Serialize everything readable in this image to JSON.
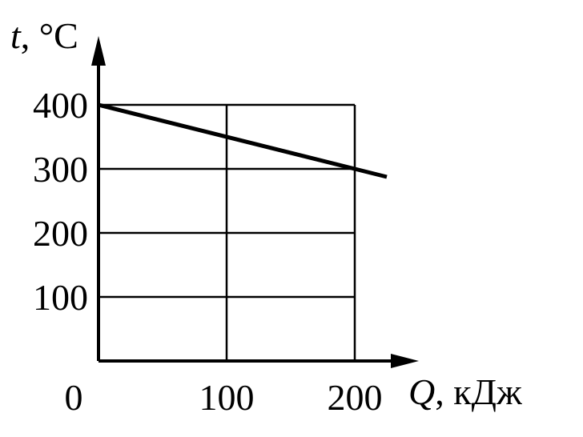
{
  "chart_data": {
    "type": "line",
    "title": "",
    "xlabel": {
      "symbol": "Q",
      "unit": ", кДж"
    },
    "ylabel": {
      "symbol": "t",
      "unit": ", °С"
    },
    "origin_label": "0",
    "x_ticks": [
      100,
      200
    ],
    "x_tick_labels": [
      "100",
      "200"
    ],
    "y_ticks": [
      100,
      200,
      300,
      400
    ],
    "y_tick_labels": [
      "100",
      "200",
      "300",
      "400"
    ],
    "xlim": [
      0,
      250
    ],
    "ylim": [
      0,
      400
    ],
    "grid": true,
    "series": [
      {
        "x": [
          0,
          225
        ],
        "y": [
          400,
          287.5
        ]
      }
    ]
  }
}
